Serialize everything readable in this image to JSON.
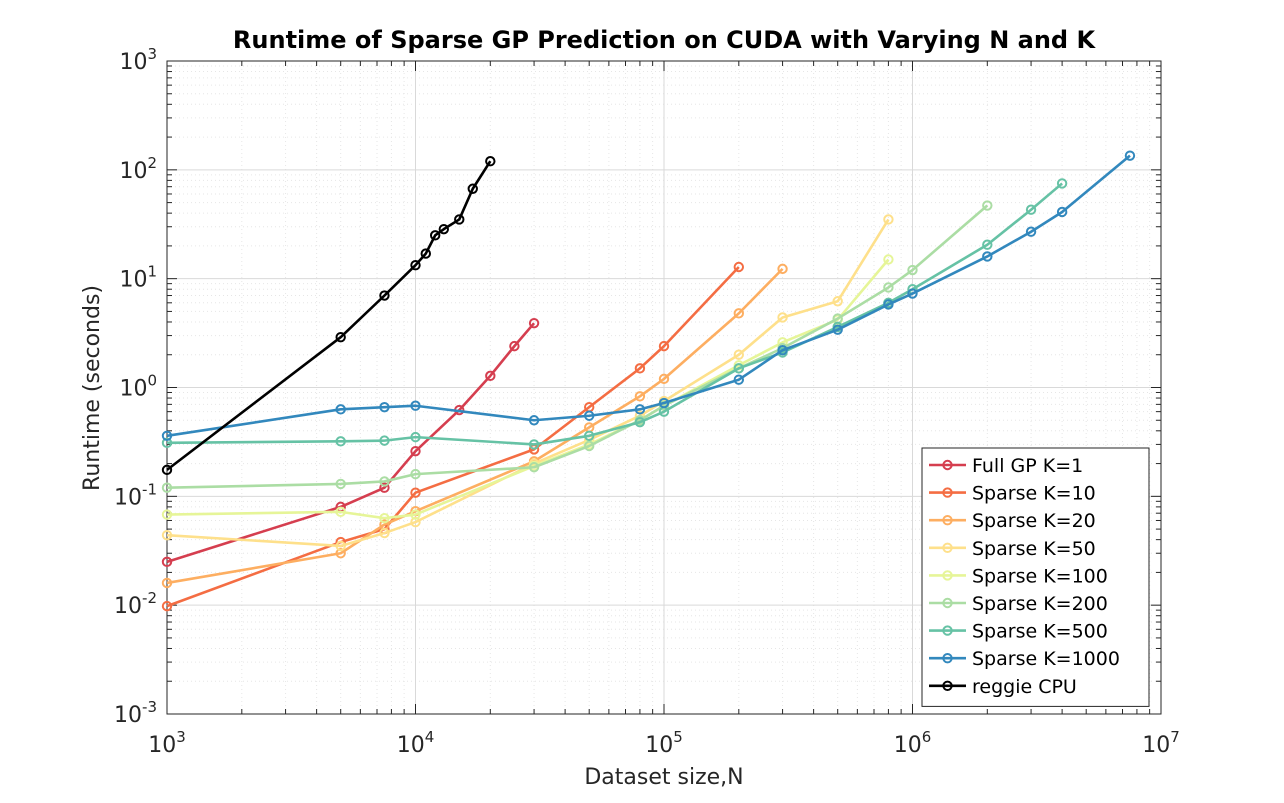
{
  "chart_data": {
    "type": "line",
    "title": "Runtime of Sparse GP Prediction on CUDA with Varying N and K",
    "xlabel": "Dataset size,N",
    "ylabel": "Runtime (seconds)",
    "xscale": "log",
    "yscale": "log",
    "xlim": [
      1000,
      10000000
    ],
    "ylim": [
      0.001,
      1000
    ],
    "grid": true,
    "minor_grid": true,
    "legend_position": "bottom-right",
    "x_ticks": [
      {
        "base": "10",
        "exp": "3"
      },
      {
        "base": "10",
        "exp": "4"
      },
      {
        "base": "10",
        "exp": "5"
      },
      {
        "base": "10",
        "exp": "6"
      },
      {
        "base": "10",
        "exp": "7"
      }
    ],
    "y_ticks": [
      {
        "base": "10",
        "exp": "-3"
      },
      {
        "base": "10",
        "exp": "-2"
      },
      {
        "base": "10",
        "exp": "-1"
      },
      {
        "base": "10",
        "exp": "0"
      },
      {
        "base": "10",
        "exp": "1"
      },
      {
        "base": "10",
        "exp": "2"
      },
      {
        "base": "10",
        "exp": "3"
      }
    ],
    "series": [
      {
        "name": "Full GP K=1",
        "color": "#d53e4f",
        "x": [
          1000,
          5000,
          7500,
          10000,
          15000,
          20000,
          25000,
          30000
        ],
        "y": [
          0.025,
          0.08,
          0.12,
          0.26,
          0.62,
          1.28,
          2.4,
          3.9
        ]
      },
      {
        "name": "Sparse K=10",
        "color": "#f46d43",
        "x": [
          1000,
          5000,
          7500,
          10000,
          30000,
          50000,
          80000,
          100000,
          200000
        ],
        "y": [
          0.0098,
          0.038,
          0.05,
          0.108,
          0.27,
          0.66,
          1.5,
          2.4,
          12.8
        ]
      },
      {
        "name": "Sparse K=20",
        "color": "#fdae61",
        "x": [
          1000,
          5000,
          7500,
          10000,
          30000,
          50000,
          80000,
          100000,
          200000,
          300000
        ],
        "y": [
          0.016,
          0.03,
          0.055,
          0.073,
          0.21,
          0.43,
          0.83,
          1.2,
          4.8,
          12.3
        ]
      },
      {
        "name": "Sparse K=50",
        "color": "#fee08b",
        "x": [
          1000,
          5000,
          7500,
          10000,
          30000,
          50000,
          80000,
          100000,
          200000,
          300000,
          500000,
          800000
        ],
        "y": [
          0.044,
          0.035,
          0.046,
          0.058,
          0.2,
          0.33,
          0.55,
          0.75,
          2.0,
          4.4,
          6.2,
          35
        ]
      },
      {
        "name": "Sparse K=100",
        "color": "#e6f598",
        "x": [
          1000,
          5000,
          7500,
          10000,
          30000,
          50000,
          80000,
          100000,
          200000,
          300000,
          500000,
          800000
        ],
        "y": [
          0.068,
          0.072,
          0.063,
          0.068,
          0.19,
          0.3,
          0.5,
          0.68,
          1.6,
          2.6,
          4.2,
          15
        ]
      },
      {
        "name": "Sparse K=200",
        "color": "#abdda4",
        "x": [
          1000,
          5000,
          7500,
          10000,
          30000,
          50000,
          80000,
          100000,
          200000,
          300000,
          500000,
          800000,
          1000000,
          2000000
        ],
        "y": [
          0.12,
          0.13,
          0.137,
          0.16,
          0.185,
          0.29,
          0.5,
          0.68,
          1.5,
          2.3,
          4.3,
          8.3,
          12,
          47
        ]
      },
      {
        "name": "Sparse K=500",
        "color": "#66c2a5",
        "x": [
          1000,
          5000,
          7500,
          10000,
          30000,
          50000,
          80000,
          100000,
          200000,
          300000,
          500000,
          800000,
          1000000,
          2000000,
          3000000,
          4000000
        ],
        "y": [
          0.31,
          0.32,
          0.325,
          0.35,
          0.3,
          0.36,
          0.48,
          0.6,
          1.5,
          2.1,
          3.6,
          6.0,
          8.0,
          20.5,
          43,
          75
        ]
      },
      {
        "name": "Sparse K=1000",
        "color": "#3288bd",
        "x": [
          1000,
          5000,
          7500,
          10000,
          30000,
          50000,
          80000,
          100000,
          200000,
          300000,
          500000,
          800000,
          1000000,
          2000000,
          3000000,
          4000000,
          7500000
        ],
        "y": [
          0.36,
          0.63,
          0.66,
          0.68,
          0.5,
          0.55,
          0.63,
          0.72,
          1.18,
          2.2,
          3.4,
          5.8,
          7.3,
          16,
          27,
          41,
          135
        ]
      },
      {
        "name": "reggie CPU",
        "color": "#000000",
        "x": [
          1000,
          5000,
          7500,
          10000,
          11000,
          12000,
          13000,
          15000,
          17000,
          20000
        ],
        "y": [
          0.175,
          2.9,
          7.0,
          13.3,
          17,
          25,
          28.5,
          35,
          67,
          120
        ]
      }
    ]
  }
}
